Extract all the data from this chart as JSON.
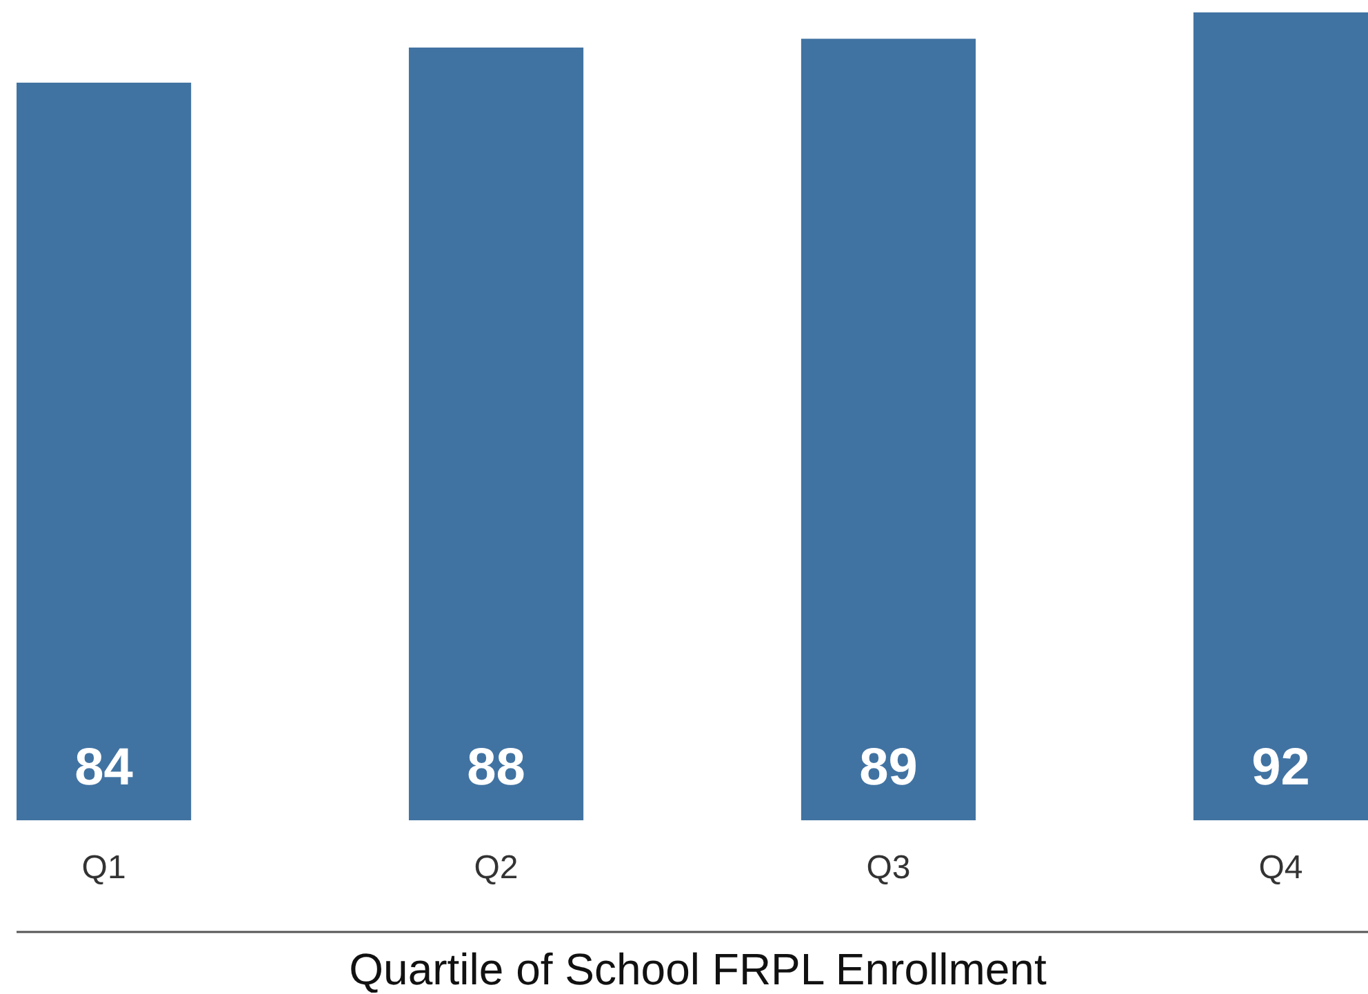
{
  "chart_data": {
    "type": "bar",
    "xlabel": "Quartile of School FRPL Enrollment",
    "categories": [
      "Q1",
      "Q2",
      "Q3",
      "Q4"
    ],
    "values": [
      84,
      88,
      89,
      92
    ],
    "color": "#4173a2",
    "data_labels": true
  }
}
